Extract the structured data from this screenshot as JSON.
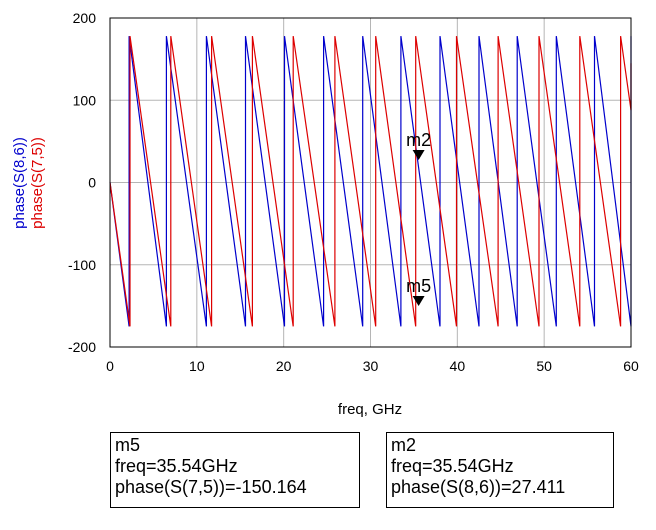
{
  "chart_data": {
    "type": "line",
    "xlabel": "freq, GHz",
    "ylabel_series": [
      "phase(S(8,6))",
      "phase(S(7,5))"
    ],
    "xlim": [
      0,
      60
    ],
    "ylim": [
      -200,
      200
    ],
    "xticks": [
      0,
      10,
      20,
      30,
      40,
      50,
      60
    ],
    "yticks": [
      -200,
      -100,
      0,
      100,
      200
    ],
    "grid": true,
    "series": [
      {
        "name": "phase(S(8,6))",
        "color": "#0000cc",
        "wrap_points": [
          2.2,
          6.5,
          11.1,
          15.6,
          20.1,
          24.6,
          29.1,
          33.5,
          38.0,
          42.5,
          46.9,
          51.4,
          55.8,
          60.0
        ],
        "start_phase": 0,
        "wrap_low": -175,
        "wrap_high": 178
      },
      {
        "name": "phase(S(7,5))",
        "color": "#dd0000",
        "wrap_points": [
          2.3,
          7.0,
          11.7,
          16.4,
          21.1,
          25.9,
          30.6,
          35.2,
          39.9,
          44.7,
          49.4,
          54.1,
          58.8
        ],
        "start_phase": 0,
        "wrap_low": -175,
        "wrap_high": 178,
        "end_jump_value": 145
      }
    ],
    "markers": [
      {
        "name": "m2",
        "freq": 35.54,
        "value": 27.411,
        "series": "phase(S(8,6))"
      },
      {
        "name": "m5",
        "freq": 35.54,
        "value": -150.164,
        "series": "phase(S(7,5))"
      }
    ]
  },
  "readouts": {
    "m5": {
      "title": "m5",
      "freq": "freq=35.54GHz",
      "value": "phase(S(7,5))=-150.164"
    },
    "m2": {
      "title": "m2",
      "freq": "freq=35.54GHz",
      "value": "phase(S(8,6))=27.411"
    }
  }
}
